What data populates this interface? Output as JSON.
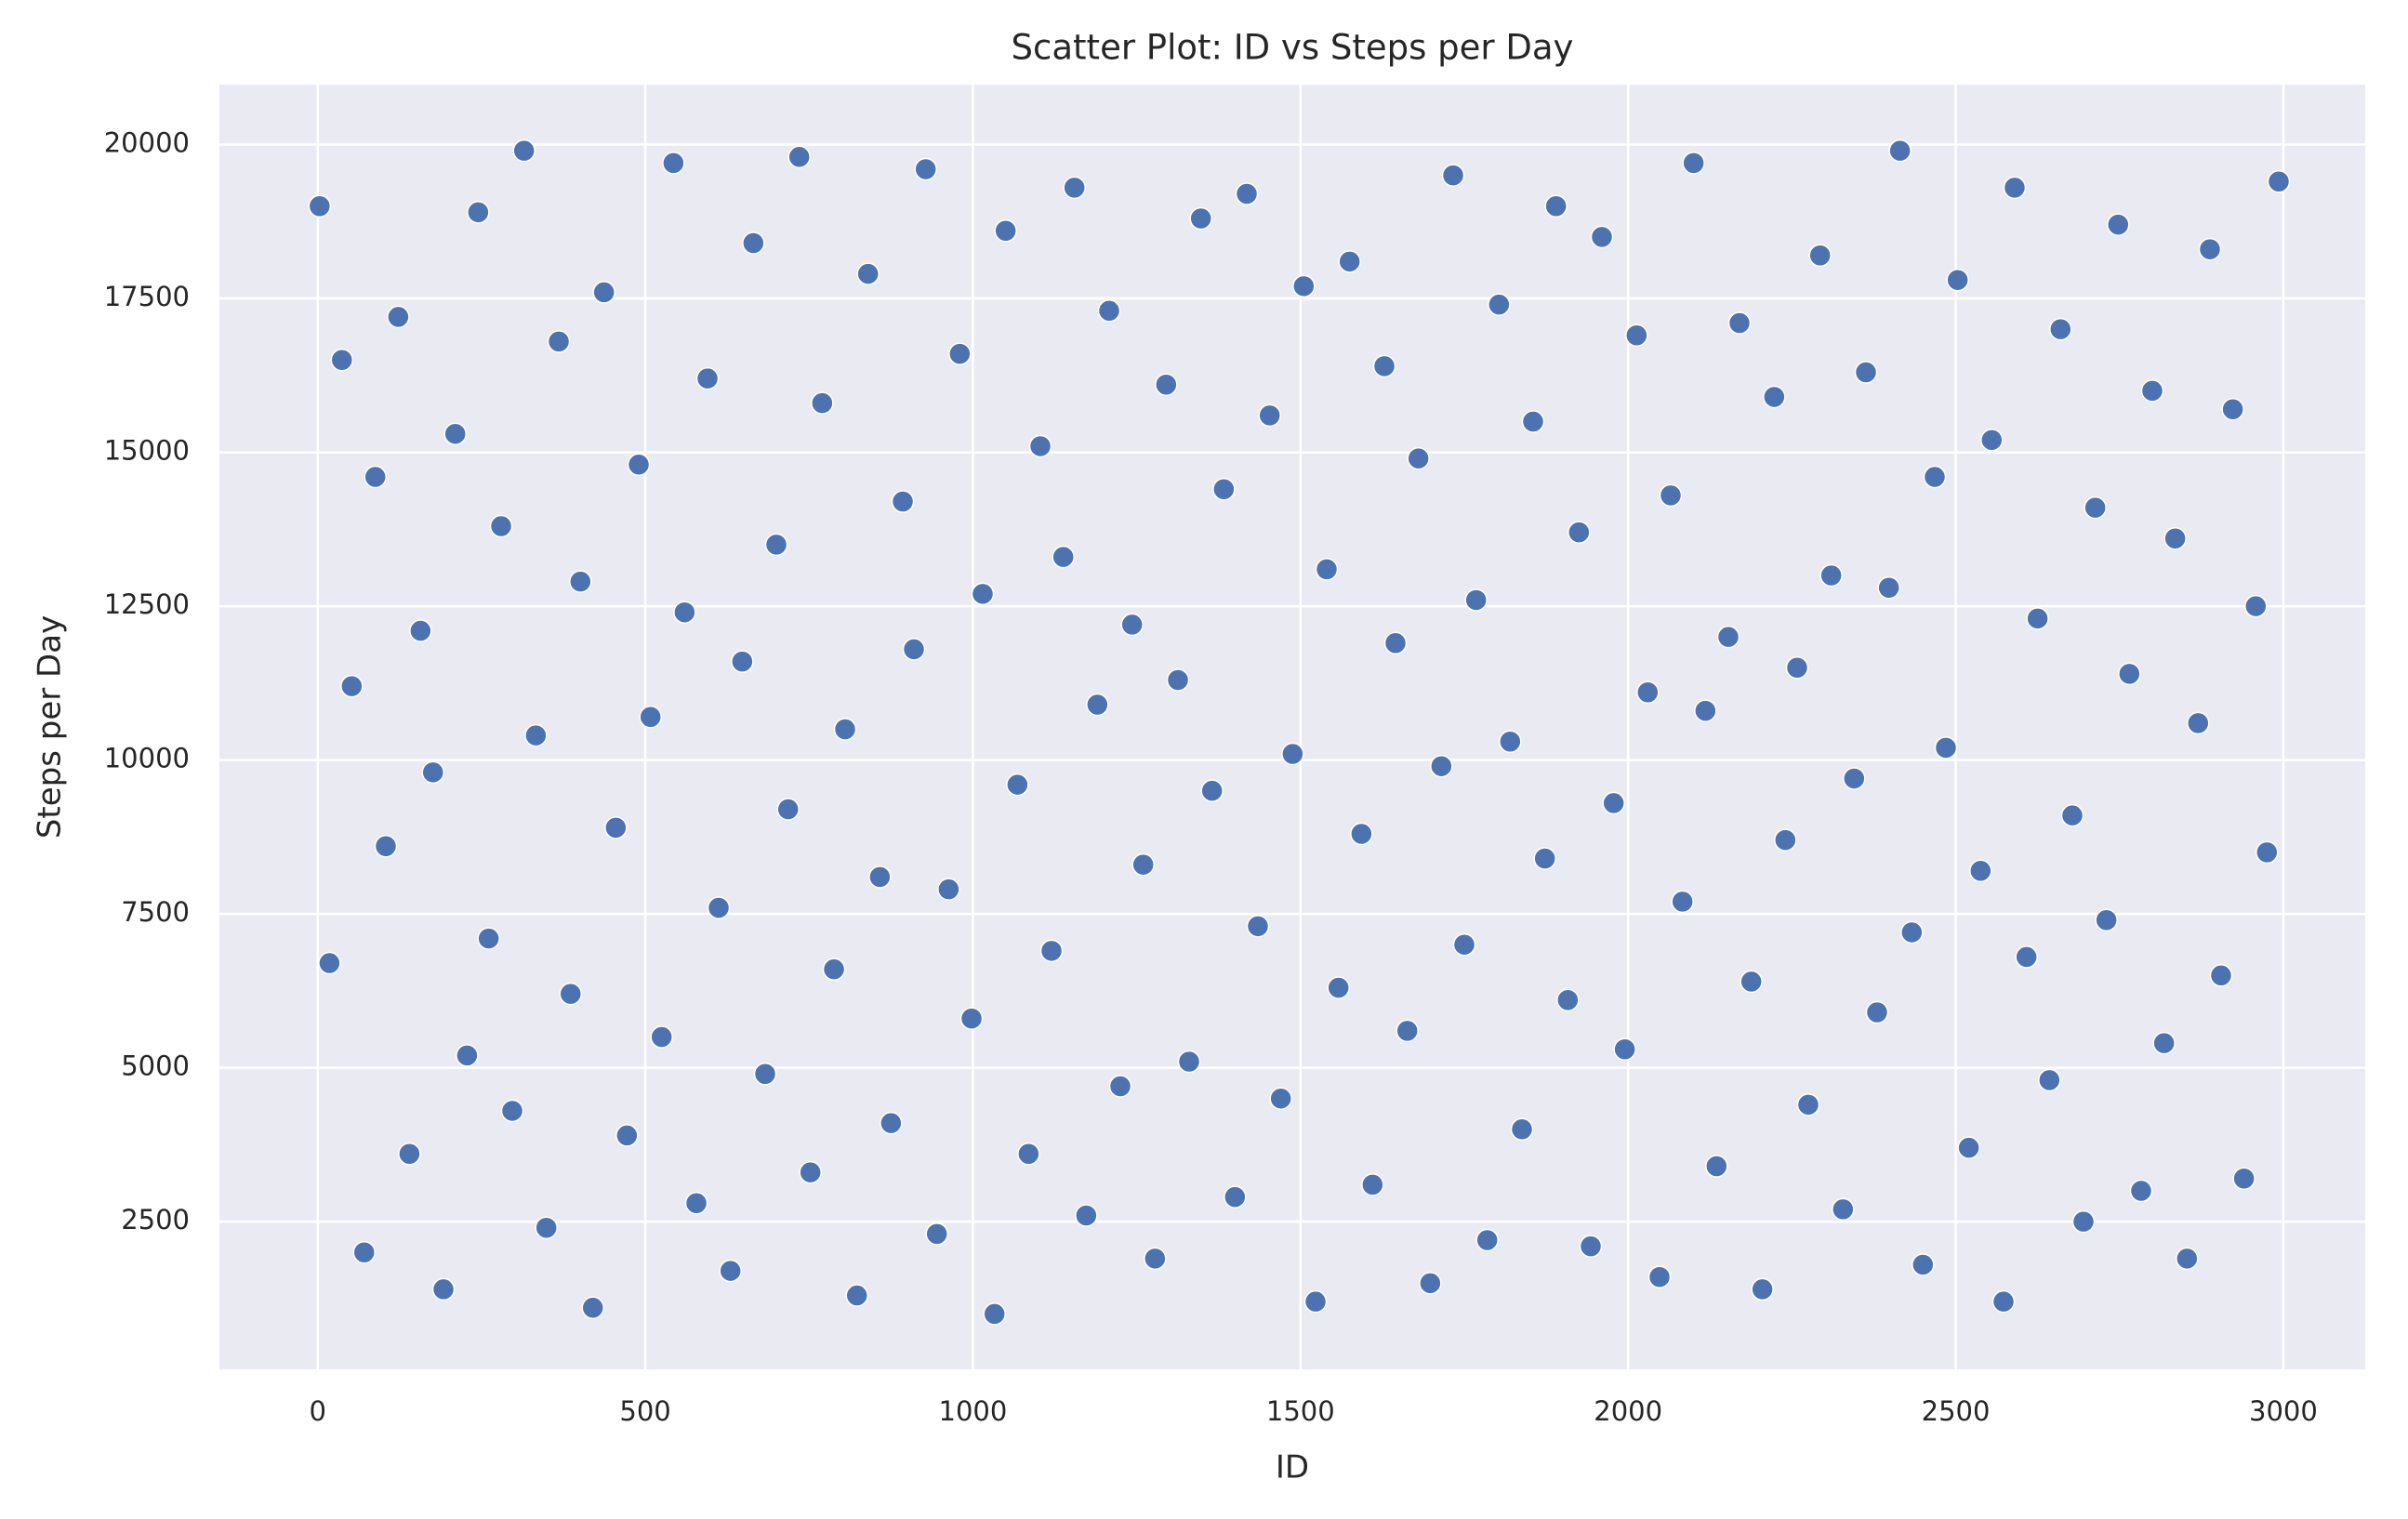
{
  "chart_data": {
    "type": "scatter",
    "title": "Scatter Plot: ID vs Steps per Day",
    "x_label": "ID",
    "y_label": "Steps per Day",
    "color": "#4c72b0",
    "grid": true,
    "xlim": [
      -150,
      3125
    ],
    "xticks": [
      0,
      500,
      1000,
      1500,
      2000,
      2500,
      3000
    ],
    "ylim": [
      100,
      20975
    ],
    "yticks": [
      2500,
      5000,
      7500,
      10000,
      12500,
      15000,
      17500,
      20000
    ],
    "x": [
      3,
      18,
      37,
      52,
      71,
      88,
      104,
      123,
      140,
      157,
      176,
      192,
      210,
      228,
      245,
      261,
      280,
      297,
      315,
      333,
      349,
      368,
      386,
      401,
      420,
      437,
      455,
      472,
      490,
      508,
      525,
      543,
      560,
      578,
      595,
      612,
      630,
      648,
      665,
      683,
      700,
      718,
      735,
      752,
      770,
      788,
      805,
      823,
      840,
      858,
      875,
      893,
      910,
      928,
      945,
      963,
      980,
      998,
      1015,
      1033,
      1050,
      1068,
      1085,
      1103,
      1120,
      1138,
      1155,
      1173,
      1190,
      1208,
      1225,
      1243,
      1260,
      1278,
      1295,
      1313,
      1330,
      1348,
      1365,
      1383,
      1400,
      1418,
      1435,
      1453,
      1470,
      1488,
      1505,
      1523,
      1540,
      1558,
      1575,
      1593,
      1610,
      1628,
      1645,
      1663,
      1680,
      1698,
      1715,
      1733,
      1750,
      1768,
      1785,
      1803,
      1820,
      1838,
      1855,
      1873,
      1890,
      1908,
      1925,
      1943,
      1960,
      1978,
      1995,
      2013,
      2030,
      2048,
      2065,
      2083,
      2100,
      2118,
      2135,
      2153,
      2170,
      2188,
      2205,
      2223,
      2240,
      2258,
      2275,
      2293,
      2310,
      2328,
      2345,
      2363,
      2380,
      2398,
      2415,
      2433,
      2450,
      2468,
      2485,
      2503,
      2520,
      2538,
      2555,
      2573,
      2590,
      2608,
      2625,
      2643,
      2660,
      2678,
      2695,
      2713,
      2730,
      2748,
      2765,
      2783,
      2800,
      2818,
      2835,
      2853,
      2870,
      2888,
      2905,
      2923,
      2940,
      2958,
      2975,
      2993
    ],
    "values": [
      19000,
      6700,
      16500,
      11200,
      2000,
      14600,
      8600,
      17200,
      3600,
      12100,
      9800,
      1400,
      15300,
      5200,
      18900,
      7100,
      13800,
      4300,
      19900,
      10400,
      2400,
      16800,
      6200,
      12900,
      1100,
      17600,
      8900,
      3900,
      14800,
      10700,
      5500,
      19700,
      12400,
      2800,
      16200,
      7600,
      1700,
      11600,
      18400,
      4900,
      13500,
      9200,
      19800,
      3300,
      15800,
      6600,
      10500,
      1300,
      17900,
      8100,
      4100,
      14200,
      11800,
      19600,
      2300,
      7900,
      16600,
      5800,
      12700,
      1000,
      18600,
      9600,
      3600,
      15100,
      6900,
      13300,
      19300,
      2600,
      10900,
      17300,
      4700,
      12200,
      8300,
      1900,
      16100,
      11300,
      5100,
      18800,
      9500,
      14400,
      2900,
      19200,
      7300,
      15600,
      4500,
      10100,
      17700,
      1200,
      13100,
      6300,
      18100,
      8800,
      3100,
      16400,
      11900,
      5600,
      14900,
      1500,
      9900,
      19500,
      7000,
      12600,
      2200,
      17400,
      10300,
      4000,
      15500,
      8400,
      19000,
      6100,
      13700,
      2100,
      18500,
      9300,
      5300,
      16900,
      11100,
      1600,
      14300,
      7700,
      19700,
      10800,
      3400,
      12000,
      17100,
      6400,
      1400,
      15900,
      8700,
      11500,
      4400,
      18200,
      13000,
      2700,
      9700,
      16300,
      5900,
      12800,
      19900,
      7200,
      1800,
      14600,
      10200,
      17800,
      3700,
      8200,
      15200,
      1200,
      19300,
      6800,
      12300,
      4800,
      17000,
      9100,
      2500,
      14100,
      7400,
      18700,
      11400,
      3000,
      16000,
      5400,
      13600,
      1900,
      10600,
      18300,
      6500,
      15700,
      3200,
      12500,
      8500,
      19400
    ]
  }
}
